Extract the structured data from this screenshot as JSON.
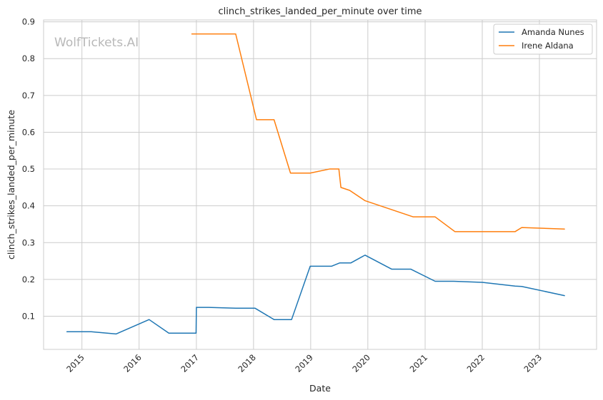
{
  "chart_data": {
    "type": "line",
    "title": "clinch_strikes_landed_per_minute over time",
    "xlabel": "Date",
    "ylabel": "clinch_strikes_landed_per_minute",
    "watermark": "WolfTickets.AI",
    "xlim": [
      "2014-05-01",
      "2024-01-01"
    ],
    "ylim": [
      0.01,
      0.905
    ],
    "x_ticks": [
      "2015",
      "2016",
      "2017",
      "2018",
      "2019",
      "2020",
      "2021",
      "2022",
      "2023"
    ],
    "y_ticks": [
      "0.1",
      "0.2",
      "0.3",
      "0.4",
      "0.5",
      "0.6",
      "0.7",
      "0.8",
      "0.9"
    ],
    "grid": true,
    "legend_position": "top-right",
    "colors": {
      "Amanda Nunes": "#1f77b4",
      "Irene Aldana": "#ff7f0e"
    },
    "series": [
      {
        "name": "Amanda Nunes",
        "color": "#1f77b4",
        "x": [
          "2014-09-27",
          "2015-03-01",
          "2015-08-08",
          "2016-03-05",
          "2016-07-09",
          "2016-12-30",
          "2017-01-01",
          "2017-03-20",
          "2017-09-09",
          "2018-01-10",
          "2018-05-12",
          "2018-09-01",
          "2018-12-29",
          "2019-03-01",
          "2019-05-15",
          "2019-07-06",
          "2019-09-15",
          "2019-12-14",
          "2020-06-01",
          "2020-10-01",
          "2021-03-06",
          "2021-07-01",
          "2022-01-01",
          "2022-07-30",
          "2022-09-10",
          "2023-06-10"
        ],
        "y": [
          0.058,
          0.058,
          0.052,
          0.091,
          0.054,
          0.054,
          0.124,
          0.124,
          0.122,
          0.122,
          0.091,
          0.091,
          0.236,
          0.236,
          0.236,
          0.245,
          0.245,
          0.266,
          0.228,
          0.228,
          0.195,
          0.195,
          0.192,
          0.182,
          0.181,
          0.156
        ]
      },
      {
        "name": "Irene Aldana",
        "color": "#ff7f0e",
        "x": [
          "2016-12-03",
          "2017-09-09",
          "2018-01-20",
          "2018-05-12",
          "2018-08-25",
          "2018-12-29",
          "2019-05-01",
          "2019-06-30",
          "2019-07-13",
          "2019-09-07",
          "2019-12-14",
          "2020-10-17",
          "2021-03-06",
          "2021-07-10",
          "2022-07-30",
          "2022-09-10",
          "2023-06-10"
        ],
        "y": [
          0.867,
          0.867,
          0.634,
          0.634,
          0.489,
          0.489,
          0.5,
          0.5,
          0.45,
          0.442,
          0.414,
          0.37,
          0.37,
          0.33,
          0.33,
          0.341,
          0.337
        ]
      }
    ]
  }
}
